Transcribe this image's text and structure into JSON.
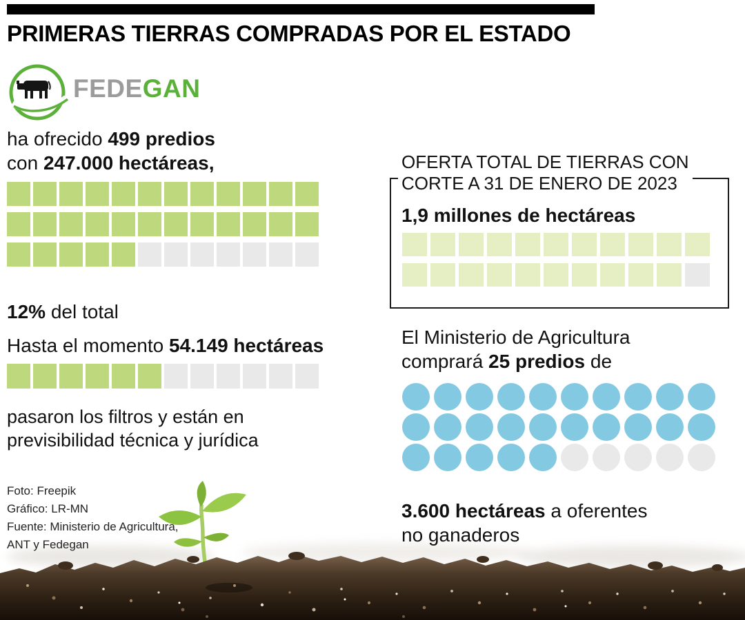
{
  "title": "PRIMERAS TIERRAS COMPRADAS POR EL ESTADO",
  "logo": {
    "fede": "FEDE",
    "gan": "GAN"
  },
  "colors": {
    "logo_green": "#5bb03a",
    "waffle_green": "#bdd87d",
    "waffle_pale_green": "#e6efc3",
    "dot_blue": "#84c9e2",
    "empty_gray": "#e9e9e9",
    "accent_black": "#000000"
  },
  "left": {
    "offered_pre": "ha ofrecido ",
    "offered_bold": "499 predios",
    "offered_pre2": "con ",
    "offered_bold2": "247.000 hectáreas,",
    "pct_bold": "12%",
    "pct_rest": " del total",
    "hasta_pre": "Hasta el momento ",
    "hasta_bold": "54.149 hectáreas",
    "filters_line1": "pasaron los filtros y están en",
    "filters_line2": "previsibilidad técnica y jurídica",
    "credits": [
      "Foto: Freepik",
      "Gráfico: LR-MN",
      "Fuente: Ministerio de Agricultura,",
      "ANT y Fedegan"
    ]
  },
  "right": {
    "box_title1": "OFERTA TOTAL DE TIERRAS CON",
    "box_title2": "CORTE A 31 DE ENERO DE 2023",
    "box_value": "1,9 millones de hectáreas",
    "min_line1": "El Ministerio de Agricultura",
    "min_pre": "comprará ",
    "min_bold": "25 predios",
    "min_post": " de",
    "hect_bold": "3.600 hectáreas",
    "hect_rest": " a oferentes",
    "hect_line2": "no ganaderos"
  },
  "chart_data": [
    {
      "id": "waffle-ofrecido",
      "type": "heatmap",
      "subtype": "waffle",
      "shape": "square",
      "cols": 12,
      "rows_filled": [
        12,
        12,
        5
      ],
      "filled": 29,
      "total": 36,
      "label": "Fedegán ha ofrecido 499 predios con 247.000 hectáreas (12% del total)",
      "fill_color": "#bdd87d",
      "empty_color": "#e9e9e9"
    },
    {
      "id": "waffle-hasta",
      "type": "heatmap",
      "subtype": "waffle",
      "shape": "square",
      "cols": 12,
      "rows_filled": [
        6
      ],
      "filled": 6,
      "total": 12,
      "label": "Hasta el momento 54.149 hectáreas pasaron los filtros y están en previsibilidad técnica y jurídica",
      "fill_color": "#bdd87d",
      "empty_color": "#e9e9e9"
    },
    {
      "id": "waffle-oferta",
      "type": "heatmap",
      "subtype": "waffle",
      "shape": "square",
      "cols": 11,
      "rows_filled": [
        11,
        10
      ],
      "filled": 21,
      "total": 22,
      "label": "Oferta total de tierras con corte a 31 de enero de 2023: 1,9 millones de hectáreas",
      "fill_color": "#e6efc3",
      "empty_color": "#e9e9e9"
    },
    {
      "id": "dots-predios",
      "type": "heatmap",
      "subtype": "waffle",
      "shape": "circle",
      "cols": 10,
      "rows_filled": [
        10,
        10,
        5
      ],
      "filled": 25,
      "total": 30,
      "label": "El Ministerio de Agricultura comprará 25 predios de 3.600 hectáreas a oferentes no ganaderos",
      "fill_color": "#84c9e2",
      "empty_color": "#e9e9e9"
    }
  ]
}
